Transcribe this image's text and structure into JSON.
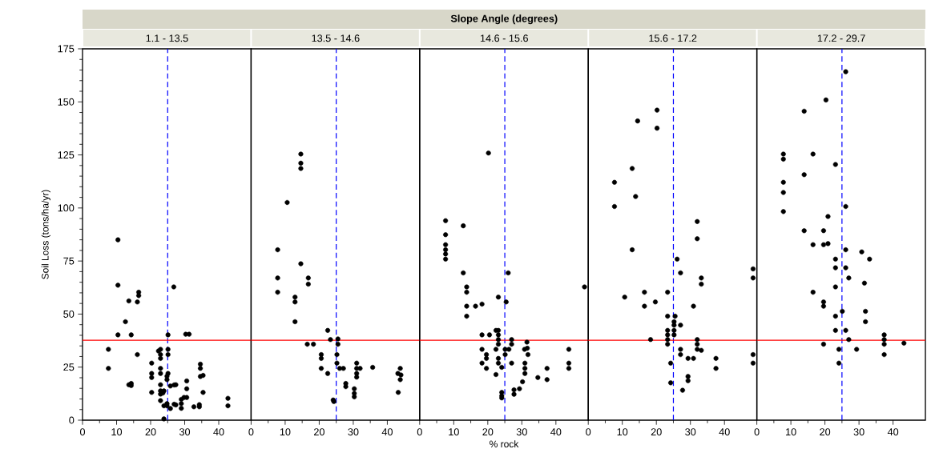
{
  "chart_data": [
    {
      "type": "scatter",
      "subtitle": "1.1 - 13.5",
      "ylabel": "Soil Loss (tons/ha/yr)",
      "color": "#000000",
      "marker": "circle",
      "xlim": [
        0,
        49.5
      ],
      "xticks": [
        0,
        10,
        20,
        30,
        40
      ],
      "ylim": [
        0,
        175
      ],
      "yticks": [
        0,
        25,
        50,
        75,
        100,
        125,
        150,
        175
      ],
      "x": [
        10.4,
        10.4,
        26.8,
        16.5,
        16.5,
        13.6,
        16.1,
        12.6,
        10.4,
        14.3,
        25.1,
        30.3,
        31.3,
        7.6,
        7.6,
        16.1,
        22.3,
        22.9,
        22.9,
        22.9,
        25.1,
        25.1,
        20.3,
        22.9,
        20.3,
        20.3,
        22.9,
        25.1,
        24.8,
        24.8,
        13.6,
        14.3,
        14.3,
        22.9,
        25.8,
        26.9,
        27.4,
        20.3,
        22.9,
        23.9,
        22.9,
        23.6,
        22.9,
        23.9,
        24.8,
        24.8,
        25.8,
        26.9,
        27.4,
        23.9,
        34.6,
        34.6,
        34.6,
        35.4,
        35.4,
        30.6,
        30.6,
        29.8,
        30.6,
        29.0,
        29.0,
        29.0,
        32.7,
        34.3,
        34.3,
        42.7,
        42.7
      ],
      "values": [
        85.0,
        63.6,
        62.8,
        60.3,
        58.7,
        56.2,
        55.7,
        46.4,
        40.2,
        40.2,
        40.2,
        40.5,
        40.5,
        33.4,
        24.4,
        30.9,
        32.6,
        33.4,
        30.9,
        29.1,
        33.4,
        30.9,
        26.9,
        24.4,
        22.0,
        20.1,
        22.0,
        22.0,
        20.7,
        19.1,
        16.7,
        17.3,
        16.3,
        16.7,
        16.1,
        16.6,
        16.7,
        13.1,
        13.8,
        13.8,
        12.3,
        12.8,
        9.2,
        6.8,
        7.8,
        6.8,
        5.5,
        7.5,
        7.2,
        0.6,
        26.4,
        24.4,
        20.6,
        21.1,
        13.1,
        18.5,
        14.8,
        10.7,
        10.7,
        9.8,
        7.8,
        5.6,
        6.3,
        7.3,
        6.3,
        10.3,
        6.8
      ],
      "ref_lines": [
        {
          "axis": "x",
          "value": 25,
          "color": "#0000ff",
          "line_style": "dashed"
        },
        {
          "axis": "y",
          "value": 37.7,
          "color": "#ff0000",
          "line_style": "solid"
        }
      ]
    },
    {
      "type": "scatter",
      "subtitle": "13.5 - 14.6",
      "color": "#000000",
      "marker": "circle",
      "xlim": [
        0,
        49.5
      ],
      "xticks": [
        0,
        10,
        20,
        30,
        40
      ],
      "ylim": [
        0,
        175
      ],
      "tick_labels": "x",
      "x": [
        14.6,
        14.6,
        14.6,
        10.6,
        7.8,
        14.6,
        7.8,
        16.8,
        16.8,
        7.8,
        12.9,
        12.9,
        12.9,
        22.5,
        23.3,
        25.5,
        25.5,
        16.5,
        18.3,
        20.6,
        20.6,
        20.6,
        22.5,
        25.2,
        25.2,
        26.0,
        27.1,
        31.0,
        31.0,
        32.0,
        31.0,
        31.0,
        35.7,
        27.8,
        27.8,
        30.3,
        30.3,
        30.3,
        24.1,
        24.3,
        43.8,
        43.1,
        44.0,
        43.8,
        43.2
      ],
      "values": [
        125.4,
        121.1,
        118.6,
        102.6,
        80.3,
        73.7,
        67.0,
        67.0,
        64.1,
        60.3,
        58.0,
        55.7,
        46.4,
        42.3,
        38.0,
        38.3,
        35.8,
        35.8,
        35.8,
        30.9,
        29.1,
        24.4,
        22.0,
        30.9,
        26.9,
        24.4,
        24.4,
        26.9,
        24.4,
        24.4,
        22.0,
        20.3,
        24.9,
        17.3,
        15.8,
        14.8,
        12.6,
        11.0,
        9.5,
        8.8,
        24.4,
        22.0,
        21.3,
        19.1,
        13.1
      ],
      "ref_lines": [
        {
          "axis": "x",
          "value": 25,
          "color": "#0000ff",
          "line_style": "dashed"
        },
        {
          "axis": "y",
          "value": 37.7,
          "color": "#ff0000",
          "line_style": "solid"
        }
      ]
    },
    {
      "type": "scatter",
      "title": "Slope Angle (degrees)",
      "subtitle": "14.6 - 15.6",
      "xlabel": "% rock",
      "color": "#000000",
      "marker": "circle",
      "xlim": [
        0,
        49.5
      ],
      "xticks": [
        0,
        10,
        20,
        30,
        40
      ],
      "ylim": [
        0,
        175
      ],
      "tick_labels": "x",
      "x": [
        20.2,
        7.6,
        12.8,
        7.6,
        7.6,
        7.6,
        7.6,
        7.6,
        12.8,
        26.0,
        13.8,
        13.8,
        23.1,
        25.4,
        18.3,
        16.4,
        13.8,
        13.8,
        48.4,
        18.3,
        20.5,
        22.4,
        23.1,
        23.1,
        23.1,
        23.1,
        27.0,
        27.0,
        31.5,
        22.4,
        18.3,
        19.6,
        19.6,
        25.1,
        26.2,
        25.1,
        30.8,
        31.6,
        31.8,
        23.1,
        23.1,
        18.3,
        19.6,
        24.1,
        27.0,
        30.9,
        30.9,
        30.9,
        22.4,
        30.2,
        29.3,
        27.7,
        27.7,
        24.1,
        24.1,
        24.1,
        34.7,
        37.4,
        37.4,
        43.8,
        43.8,
        43.8
      ],
      "values": [
        125.9,
        94.0,
        91.6,
        87.4,
        82.7,
        80.3,
        78.3,
        75.9,
        69.4,
        69.4,
        62.8,
        60.3,
        58.0,
        55.7,
        54.7,
        53.7,
        53.7,
        49.0,
        62.8,
        40.2,
        40.2,
        42.3,
        42.3,
        40.2,
        38.0,
        35.8,
        38.0,
        35.8,
        36.8,
        33.4,
        33.4,
        30.9,
        29.1,
        33.4,
        33.4,
        30.9,
        33.4,
        33.9,
        30.9,
        29.1,
        26.9,
        26.9,
        24.4,
        24.9,
        26.9,
        26.9,
        24.4,
        22.0,
        21.5,
        18.1,
        14.8,
        14.3,
        12.2,
        13.1,
        11.5,
        10.5,
        20.1,
        24.4,
        19.1,
        33.4,
        26.9,
        24.4
      ],
      "ref_lines": [
        {
          "axis": "x",
          "value": 25,
          "color": "#0000ff",
          "line_style": "dashed"
        },
        {
          "axis": "y",
          "value": 37.7,
          "color": "#ff0000",
          "line_style": "solid"
        }
      ]
    },
    {
      "type": "scatter",
      "subtitle": "15.6 - 17.2",
      "color": "#000000",
      "marker": "circle",
      "xlim": [
        0,
        49.5
      ],
      "xticks": [
        0,
        10,
        20,
        30,
        40
      ],
      "ylim": [
        0,
        175
      ],
      "tick_labels": "x",
      "x": [
        20.2,
        14.5,
        20.2,
        12.9,
        7.7,
        13.9,
        7.7,
        32.0,
        32.0,
        12.9,
        26.1,
        27.1,
        48.4,
        48.4,
        33.2,
        33.2,
        10.7,
        16.5,
        23.3,
        19.7,
        16.5,
        30.9,
        23.3,
        25.5,
        25.2,
        25.2,
        27.1,
        25.2,
        23.3,
        23.3,
        25.2,
        23.3,
        23.3,
        18.3,
        32.0,
        32.0,
        32.0,
        33.2,
        27.1,
        27.1,
        29.3,
        30.9,
        24.2,
        37.5,
        37.5,
        29.3,
        29.3,
        24.2,
        27.7,
        48.4,
        48.4
      ],
      "values": [
        146.1,
        141.0,
        137.6,
        118.6,
        112.1,
        105.4,
        100.7,
        93.6,
        85.5,
        80.3,
        75.9,
        69.4,
        71.3,
        67.0,
        67.0,
        64.1,
        58.0,
        60.3,
        60.3,
        55.7,
        53.7,
        53.7,
        49.0,
        49.0,
        46.4,
        44.8,
        44.8,
        42.3,
        42.3,
        40.2,
        40.2,
        38.0,
        35.8,
        38.0,
        38.0,
        35.8,
        33.4,
        32.9,
        33.4,
        30.9,
        29.1,
        29.1,
        26.9,
        29.1,
        24.4,
        20.6,
        18.6,
        17.6,
        14.1,
        30.9,
        26.9
      ],
      "ref_lines": [
        {
          "axis": "x",
          "value": 25,
          "color": "#0000ff",
          "line_style": "dashed"
        },
        {
          "axis": "y",
          "value": 37.7,
          "color": "#ff0000",
          "line_style": "solid"
        }
      ]
    },
    {
      "type": "scatter",
      "subtitle": "17.2 - 29.7",
      "color": "#000000",
      "marker": "circle",
      "xlim": [
        0,
        49.5
      ],
      "xticks": [
        0,
        10,
        20,
        30,
        40
      ],
      "ylim": [
        0,
        175
      ],
      "tick_labels": "x",
      "x": [
        26.1,
        20.3,
        13.9,
        7.8,
        7.8,
        16.5,
        23.1,
        13.9,
        7.8,
        7.8,
        7.8,
        26.1,
        20.9,
        13.9,
        19.6,
        16.5,
        19.6,
        20.9,
        26.1,
        30.8,
        23.1,
        33.1,
        23.1,
        26.1,
        27.0,
        31.6,
        23.1,
        16.5,
        19.6,
        19.6,
        25.1,
        31.9,
        23.1,
        31.9,
        23.1,
        26.1,
        27.0,
        37.4,
        37.4,
        37.4,
        43.2,
        19.6,
        24.1,
        29.3,
        37.4,
        24.1
      ],
      "values": [
        164.2,
        150.9,
        145.6,
        125.4,
        123.0,
        125.4,
        120.5,
        115.7,
        112.1,
        107.3,
        98.3,
        100.7,
        96.0,
        89.3,
        89.3,
        82.7,
        82.7,
        83.2,
        80.3,
        79.3,
        75.9,
        75.9,
        71.8,
        71.8,
        67.0,
        64.6,
        62.8,
        60.3,
        55.7,
        53.7,
        51.3,
        51.3,
        49.0,
        46.4,
        42.3,
        42.3,
        38.0,
        40.2,
        38.0,
        35.8,
        36.3,
        35.8,
        33.4,
        33.4,
        30.9,
        26.9
      ],
      "ref_lines": [
        {
          "axis": "x",
          "value": 25,
          "color": "#0000ff",
          "line_style": "dashed"
        },
        {
          "axis": "y",
          "value": 37.7,
          "color": "#ff0000",
          "line_style": "solid"
        }
      ]
    }
  ]
}
